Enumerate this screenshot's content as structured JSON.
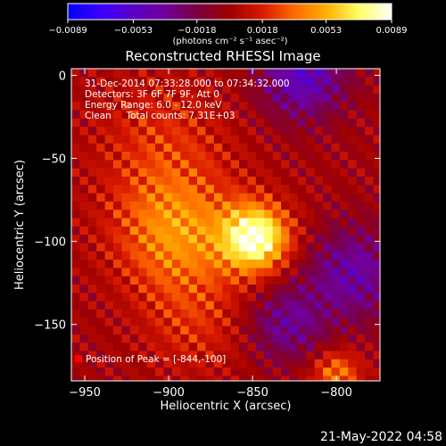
{
  "chart_data": {
    "type": "heatmap",
    "title": "Reconstructed RHESSI Image",
    "xlabel": "Heliocentric X (arcsec)",
    "ylabel": "Heliocentric Y (arcsec)",
    "xlim": [
      -958,
      -774
    ],
    "ylim": [
      -184,
      4
    ],
    "x_ticks": [
      -950,
      -900,
      -850,
      -800
    ],
    "x_tick_labels": [
      "−950",
      "−900",
      "−850",
      "−800"
    ],
    "y_ticks": [
      0,
      -50,
      -100,
      -150
    ],
    "y_tick_labels": [
      "0",
      "−50",
      "−100",
      "−150"
    ],
    "colorbar": {
      "min": -0.0089,
      "max": 0.0089,
      "ticks": [
        -0.0089,
        -0.0053,
        -0.0018,
        0.0018,
        0.0053,
        0.0089
      ],
      "tick_labels": [
        "−0.0089",
        "−0.0053",
        "−0.0018",
        "0.0018",
        "0.0053",
        "0.0089"
      ],
      "unit_label": "(photons cm⁻² s⁻¹ asec⁻²)",
      "colormap": [
        "#0000ff",
        "#3a00ff",
        "#5a00c8",
        "#70009a",
        "#7a0040",
        "#a00000",
        "#d81800",
        "#ff6a00",
        "#ffb000",
        "#ffff66",
        "#ffffff"
      ]
    },
    "peak": {
      "x": -844,
      "y": -100,
      "value": 0.0089
    },
    "image_grid": {
      "nx": 38,
      "ny": 38,
      "x_start": -958,
      "x_step": 5,
      "y_start": 4,
      "y_step": -5,
      "sources": [
        {
          "x": -848,
          "y": -98,
          "amplitude": 0.0085,
          "sigma": 14
        },
        {
          "x": -895,
          "y": -95,
          "amplitude": 0.0045,
          "sigma": 26
        },
        {
          "x": -905,
          "y": -40,
          "amplitude": 0.002,
          "sigma": 28
        },
        {
          "x": -885,
          "y": -150,
          "amplitude": 0.0018,
          "sigma": 22
        },
        {
          "x": -800,
          "y": -180,
          "amplitude": 0.004,
          "sigma": 10
        }
      ],
      "negative_regions": [
        {
          "x": -820,
          "y": 0,
          "amplitude": -0.005,
          "sigma": 18
        },
        {
          "x": -790,
          "y": -120,
          "amplitude": -0.004,
          "sigma": 20
        },
        {
          "x": -830,
          "y": -150,
          "amplitude": -0.0035,
          "sigma": 16
        }
      ],
      "ripple_amplitude": 0.0022,
      "ripple_period": 10
    }
  },
  "annotation": {
    "time_range": "31-Dec-2014 07:33:28.000 to 07:34:32.000",
    "detectors": "Detectors: 3F 6F 7F 9F, Att 0",
    "energy_range": "Energy Range: 6.0 - 12.0 keV",
    "method_counts": "Clean     Total counts: 7.31E+03",
    "peak_position": "Position of Peak = [-844,-100]"
  },
  "footer": {
    "date_time": "21-May-2022 04:58"
  }
}
